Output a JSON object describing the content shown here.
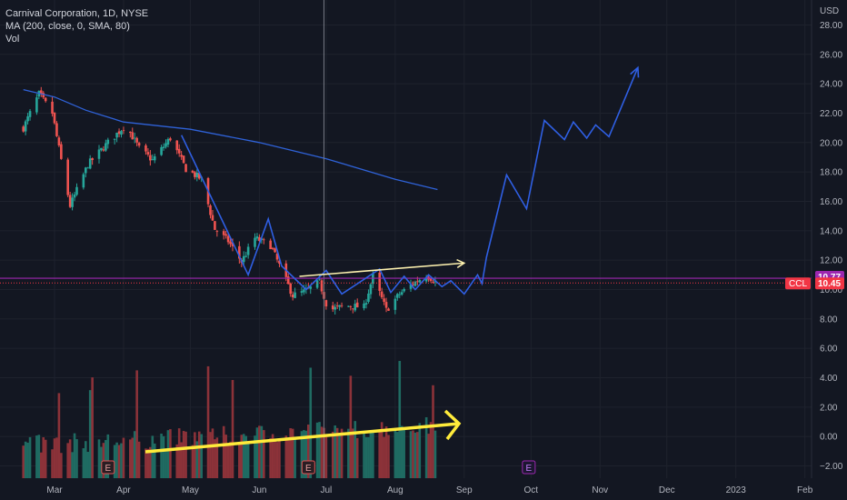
{
  "legend": {
    "symbol_line": "Carnival Corporation, 1D, NYSE",
    "ma_line": "MA (200, close, 0, SMA, 80)",
    "vol_line": "Vol"
  },
  "price_axis": {
    "currency": "USD",
    "ticks": [
      "28.00",
      "26.00",
      "24.00",
      "22.00",
      "20.00",
      "18.00",
      "16.00",
      "14.00",
      "12.00",
      "10.00",
      "8.00",
      "6.00",
      "4.00",
      "2.00",
      "0.00",
      "−2.00"
    ],
    "tick_values": [
      28,
      26,
      24,
      22,
      20,
      18,
      16,
      14,
      12,
      10,
      8,
      6,
      4,
      2,
      0,
      -2
    ]
  },
  "time_axis": {
    "labels": [
      "Mar",
      "Apr",
      "May",
      "Jun",
      "Jul",
      "Aug",
      "Sep",
      "Oct",
      "Nov",
      "Dec",
      "2023",
      "Feb"
    ]
  },
  "markers": {
    "horizontal_level": 10.77,
    "horizontal_level_label": "10.77",
    "last_price": 10.45,
    "last_price_label": "10.45",
    "ticker_badge": "CCL",
    "earnings_badge": "E"
  },
  "colors": {
    "background": "#131722",
    "up": "#26a69a",
    "down": "#ef5350",
    "volume_up": "#1f6b62",
    "volume_down": "#8c3239",
    "ma": "#2f62d8",
    "level": "#9c27b0",
    "last_price": "#f23645",
    "projection": "#2f5fe3",
    "trend_white": "#fff3b0",
    "trend_yellow": "#ffeb3b",
    "text": "#b2b5be",
    "earnings_past": "#e05555",
    "earnings_future": "#9c27b0"
  },
  "chart_data": {
    "type": "candlestick",
    "symbol": "Carnival Corporation",
    "interval": "1D",
    "exchange": "NYSE",
    "x_axis": [
      "Mar",
      "Apr",
      "May",
      "Jun",
      "Jul",
      "Aug",
      "Sep",
      "Oct",
      "Nov",
      "Dec",
      "2023",
      "Feb"
    ],
    "ylim": [
      -2.9,
      29.2
    ],
    "price_path": [
      {
        "date": "2022-02-15",
        "close": 21.0
      },
      {
        "date": "2022-02-22",
        "close": 23.3
      },
      {
        "date": "2022-02-28",
        "close": 22.0
      },
      {
        "date": "2022-03-04",
        "close": 18.8
      },
      {
        "date": "2022-03-08",
        "close": 15.7
      },
      {
        "date": "2022-03-16",
        "close": 18.5
      },
      {
        "date": "2022-03-25",
        "close": 20.0
      },
      {
        "date": "2022-04-02",
        "close": 21.2
      },
      {
        "date": "2022-04-08",
        "close": 19.6
      },
      {
        "date": "2022-04-14",
        "close": 18.8
      },
      {
        "date": "2022-04-22",
        "close": 20.3
      },
      {
        "date": "2022-04-29",
        "close": 18.2
      },
      {
        "date": "2022-05-06",
        "close": 17.5
      },
      {
        "date": "2022-05-12",
        "close": 14.1
      },
      {
        "date": "2022-05-18",
        "close": 13.3
      },
      {
        "date": "2022-05-24",
        "close": 11.9
      },
      {
        "date": "2022-05-30",
        "close": 13.5
      },
      {
        "date": "2022-06-06",
        "close": 13.0
      },
      {
        "date": "2022-06-11",
        "close": 11.3
      },
      {
        "date": "2022-06-16",
        "close": 9.6
      },
      {
        "date": "2022-06-22",
        "close": 9.9
      },
      {
        "date": "2022-06-28",
        "close": 10.5
      },
      {
        "date": "2022-07-02",
        "close": 8.6
      },
      {
        "date": "2022-07-10",
        "close": 8.9
      },
      {
        "date": "2022-07-18",
        "close": 8.8
      },
      {
        "date": "2022-07-22",
        "close": 10.9
      },
      {
        "date": "2022-07-28",
        "close": 8.6
      },
      {
        "date": "2022-08-03",
        "close": 9.7
      },
      {
        "date": "2022-08-09",
        "close": 10.4
      },
      {
        "date": "2022-08-15",
        "close": 11.0
      },
      {
        "date": "2022-08-20",
        "close": 10.45
      }
    ],
    "moving_average": {
      "name": "MA (200, close, 0, SMA, 80)",
      "points": [
        {
          "date": "2022-02-15",
          "value": 23.6
        },
        {
          "date": "2022-03-01",
          "value": 23.1
        },
        {
          "date": "2022-03-15",
          "value": 22.2
        },
        {
          "date": "2022-04-01",
          "value": 21.4
        },
        {
          "date": "2022-05-01",
          "value": 20.9
        },
        {
          "date": "2022-06-01",
          "value": 20.0
        },
        {
          "date": "2022-07-01",
          "value": 18.9
        },
        {
          "date": "2022-08-01",
          "value": 17.5
        },
        {
          "date": "2022-08-20",
          "value": 16.8
        }
      ]
    },
    "volume_trend": "rising",
    "projection": [
      {
        "date": "2022-04-27",
        "value": 20.5
      },
      {
        "date": "2022-05-27",
        "value": 11.0
      },
      {
        "date": "2022-06-05",
        "value": 14.8
      },
      {
        "date": "2022-06-11",
        "value": 11.6
      },
      {
        "date": "2022-06-22",
        "value": 10.0
      },
      {
        "date": "2022-07-01",
        "value": 11.3
      },
      {
        "date": "2022-07-08",
        "value": 9.7
      },
      {
        "date": "2022-07-25",
        "value": 11.4
      },
      {
        "date": "2022-07-30",
        "value": 9.8
      },
      {
        "date": "2022-08-05",
        "value": 10.9
      },
      {
        "date": "2022-08-10",
        "value": 10.0
      },
      {
        "date": "2022-08-16",
        "value": 11.0
      },
      {
        "date": "2022-08-22",
        "value": 10.2
      },
      {
        "date": "2022-08-26",
        "value": 10.6
      },
      {
        "date": "2022-09-01",
        "value": 9.7
      },
      {
        "date": "2022-09-07",
        "value": 11.0
      },
      {
        "date": "2022-09-09",
        "value": 10.4
      },
      {
        "date": "2022-09-11",
        "value": 12.2
      },
      {
        "date": "2022-09-20",
        "value": 17.8
      },
      {
        "date": "2022-09-29",
        "value": 15.5
      },
      {
        "date": "2022-10-07",
        "value": 21.5
      },
      {
        "date": "2022-10-16",
        "value": 20.2
      },
      {
        "date": "2022-10-20",
        "value": 21.4
      },
      {
        "date": "2022-10-26",
        "value": 20.3
      },
      {
        "date": "2022-10-30",
        "value": 21.2
      },
      {
        "date": "2022-11-05",
        "value": 20.4
      },
      {
        "date": "2022-11-18",
        "value": 25.1
      }
    ],
    "annotations": [
      {
        "type": "trend-arrow",
        "color": "white",
        "from": {
          "date": "2022-06-19",
          "value": 10.9
        },
        "to": {
          "date": "2022-09-01",
          "value": 11.8
        }
      },
      {
        "type": "trend-arrow",
        "color": "yellow",
        "pane": "volume",
        "direction": "up"
      },
      {
        "type": "horizontal-line",
        "value": 10.77
      },
      {
        "type": "crosshair",
        "date": "2022-06-30"
      },
      {
        "type": "earnings",
        "date": "2022-03-25"
      },
      {
        "type": "earnings",
        "date": "2022-06-23"
      },
      {
        "type": "earnings",
        "date": "2022-09-30"
      }
    ],
    "grid": true
  }
}
